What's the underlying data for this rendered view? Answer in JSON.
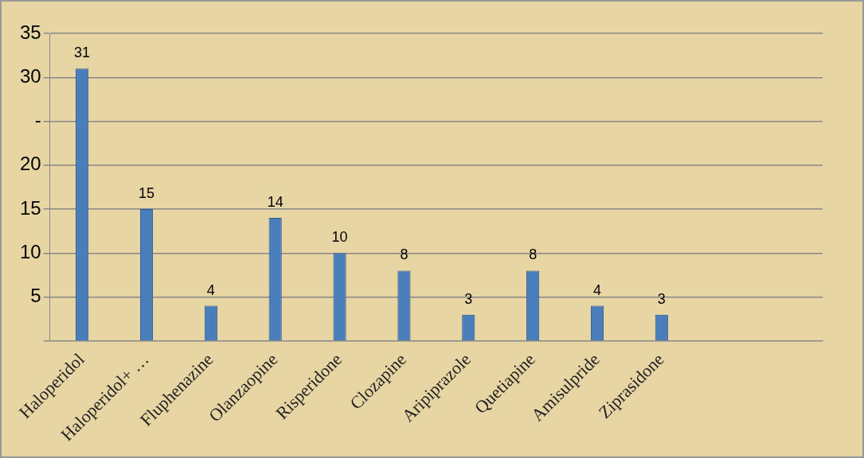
{
  "chart_data": {
    "type": "bar",
    "categories": [
      "Haloperidol",
      "Haloperidol+ …",
      "Fluphenazine",
      "Olanzaopine",
      "Risperidone",
      "Clozapine",
      "Aripiprazole",
      "Quetiapine",
      "Amisulpride",
      "Ziprasidone",
      null,
      null
    ],
    "series": [
      {
        "color": "#4a7ebb",
        "values": [
          31,
          15,
          4,
          14,
          10,
          8,
          3,
          8,
          4,
          3,
          null,
          null
        ]
      }
    ],
    "ylim": [
      0,
      35
    ],
    "yticks": [
      {
        "value": 0,
        "label": null
      },
      5,
      10,
      15,
      20,
      {
        "value": 25,
        "label": "-"
      },
      30,
      35
    ],
    "grid": "y",
    "legend": false,
    "data_labels": true
  }
}
